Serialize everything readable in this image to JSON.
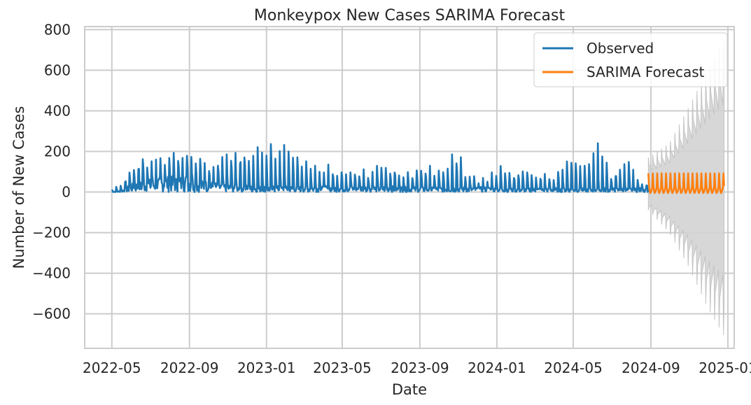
{
  "chart_data": {
    "type": "line",
    "title": "Monkeypox New Cases SARIMA Forecast",
    "xlabel": "Date",
    "ylabel": "Number of New Cases",
    "x_range": [
      "2022-03-19",
      "2025-01-11"
    ],
    "ylim": [
      -770,
      815
    ],
    "x_ticks": [
      "2022-05-01",
      "2022-09-01",
      "2023-01-01",
      "2023-05-01",
      "2023-09-01",
      "2024-01-01",
      "2024-05-01",
      "2024-09-01",
      "2025-01-01"
    ],
    "x_tick_labels": [
      "2022-05",
      "2022-09",
      "2023-01",
      "2023-05",
      "2023-09",
      "2024-01",
      "2024-05",
      "2024-09",
      "2025-01"
    ],
    "y_ticks": [
      800,
      600,
      400,
      200,
      0,
      -200,
      -400,
      -600
    ],
    "y_tick_labels": [
      "800",
      "600",
      "400",
      "200",
      "0",
      "−200",
      "−400",
      "−600"
    ],
    "grid": true,
    "legend_position": "top-right",
    "series": [
      {
        "name": "Observed",
        "color": "#1f77b4",
        "x": [
          "2022-05-01",
          "2022-05-15",
          "2022-06-01",
          "2022-06-20",
          "2022-07-15",
          "2022-08-01",
          "2022-08-10",
          "2022-08-28",
          "2022-09-15",
          "2022-10-10",
          "2022-11-01",
          "2022-11-25",
          "2022-12-10",
          "2022-12-28",
          "2023-01-12",
          "2023-01-25",
          "2023-02-15",
          "2023-03-05",
          "2023-03-25",
          "2023-04-20",
          "2023-05-20",
          "2023-06-20",
          "2023-07-15",
          "2023-08-15",
          "2023-09-15",
          "2023-10-10",
          "2023-10-25",
          "2023-11-15",
          "2023-12-15",
          "2024-01-05",
          "2024-02-01",
          "2024-03-01",
          "2024-04-01",
          "2024-05-01",
          "2024-05-20",
          "2024-06-10",
          "2024-07-01",
          "2024-07-20",
          "2024-08-10",
          "2024-08-28"
        ],
        "y": [
          15,
          40,
          150,
          225,
          170,
          240,
          235,
          290,
          225,
          165,
          190,
          265,
          230,
          275,
          240,
          305,
          200,
          165,
          170,
          120,
          130,
          125,
          155,
          120,
          135,
          105,
          275,
          85,
          75,
          165,
          110,
          120,
          75,
          235,
          125,
          250,
          100,
          200,
          75,
          55
        ],
        "baseline_max": [
          0,
          5,
          40,
          60,
          70,
          80,
          70,
          90,
          60,
          50,
          40,
          40,
          30,
          30,
          30,
          30,
          30,
          30,
          30,
          30,
          30,
          30,
          30,
          25,
          25,
          25,
          25,
          25,
          25,
          20,
          20,
          20,
          20,
          20,
          20,
          20,
          20,
          20,
          20,
          20
        ]
      },
      {
        "name": "SARIMA Forecast",
        "color": "#ff7f0e",
        "x": [
          "2024-08-28",
          "2024-12-26"
        ],
        "y": [
          92,
          -5
        ]
      }
    ],
    "confidence_interval": {
      "color": "#d3d3d3",
      "x": [
        "2024-08-28",
        "2024-09-30",
        "2024-10-31",
        "2024-11-30",
        "2024-12-26"
      ],
      "upper": [
        170,
        240,
        420,
        600,
        750
      ],
      "lower": [
        -90,
        -200,
        -370,
        -570,
        -710
      ]
    }
  }
}
